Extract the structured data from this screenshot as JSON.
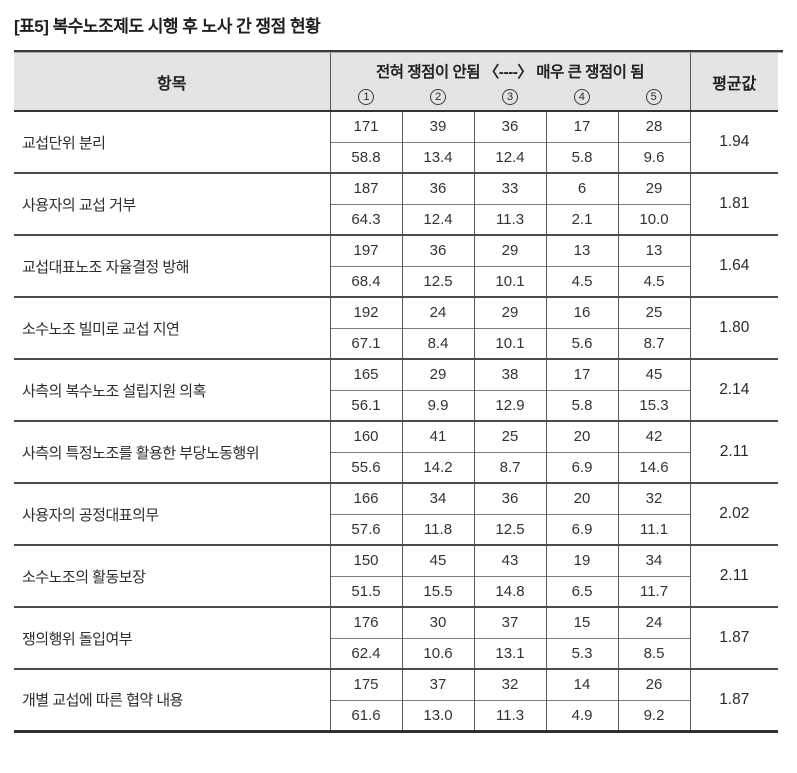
{
  "title": "[표5] 복수노조제도 시행 후 노사 간 쟁점 현황",
  "colors": {
    "header_bg": "#e4e4e4",
    "rule_dark": "#2f2f2f",
    "rule_mid": "#5c5c5c",
    "text": "#2b2b2b"
  },
  "table": {
    "header": {
      "item_col": "항목",
      "scale_label": "전혀 쟁점이 안됨 〈----〉 매우 큰 쟁점이 됨",
      "scale_points": [
        "1",
        "2",
        "3",
        "4",
        "5"
      ],
      "mean_col": "평균값"
    },
    "rows": [
      {
        "label": "교섭단위 분리",
        "counts": [
          "171",
          "39",
          "36",
          "17",
          "28"
        ],
        "percents": [
          "58.8",
          "13.4",
          "12.4",
          "5.8",
          "9.6"
        ],
        "mean": "1.94"
      },
      {
        "label": "사용자의 교섭 거부",
        "counts": [
          "187",
          "36",
          "33",
          "6",
          "29"
        ],
        "percents": [
          "64.3",
          "12.4",
          "11.3",
          "2.1",
          "10.0"
        ],
        "mean": "1.81"
      },
      {
        "label": "교섭대표노조 자율결정 방해",
        "counts": [
          "197",
          "36",
          "29",
          "13",
          "13"
        ],
        "percents": [
          "68.4",
          "12.5",
          "10.1",
          "4.5",
          "4.5"
        ],
        "mean": "1.64"
      },
      {
        "label": "소수노조 빌미로 교섭 지연",
        "counts": [
          "192",
          "24",
          "29",
          "16",
          "25"
        ],
        "percents": [
          "67.1",
          "8.4",
          "10.1",
          "5.6",
          "8.7"
        ],
        "mean": "1.80"
      },
      {
        "label": "사측의 복수노조 설립지원 의혹",
        "counts": [
          "165",
          "29",
          "38",
          "17",
          "45"
        ],
        "percents": [
          "56.1",
          "9.9",
          "12.9",
          "5.8",
          "15.3"
        ],
        "mean": "2.14"
      },
      {
        "label": "사측의 특정노조를 활용한 부당노동행위",
        "counts": [
          "160",
          "41",
          "25",
          "20",
          "42"
        ],
        "percents": [
          "55.6",
          "14.2",
          "8.7",
          "6.9",
          "14.6"
        ],
        "mean": "2.11"
      },
      {
        "label": "사용자의 공정대표의무",
        "counts": [
          "166",
          "34",
          "36",
          "20",
          "32"
        ],
        "percents": [
          "57.6",
          "11.8",
          "12.5",
          "6.9",
          "11.1"
        ],
        "mean": "2.02"
      },
      {
        "label": "소수노조의 활동보장",
        "counts": [
          "150",
          "45",
          "43",
          "19",
          "34"
        ],
        "percents": [
          "51.5",
          "15.5",
          "14.8",
          "6.5",
          "11.7"
        ],
        "mean": "2.11"
      },
      {
        "label": "쟁의행위 돌입여부",
        "counts": [
          "176",
          "30",
          "37",
          "15",
          "24"
        ],
        "percents": [
          "62.4",
          "10.6",
          "13.1",
          "5.3",
          "8.5"
        ],
        "mean": "1.87"
      },
      {
        "label": "개별 교섭에 따른 협약 내용",
        "counts": [
          "175",
          "37",
          "32",
          "14",
          "26"
        ],
        "percents": [
          "61.6",
          "13.0",
          "11.3",
          "4.9",
          "9.2"
        ],
        "mean": "1.87"
      }
    ]
  }
}
